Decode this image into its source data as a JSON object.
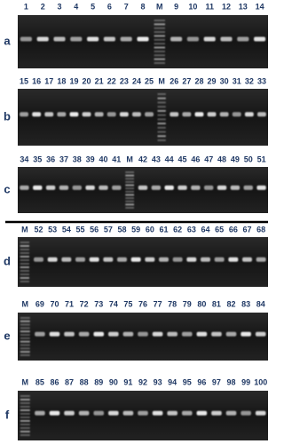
{
  "panels": [
    {
      "label": "a",
      "lanes": [
        "1",
        "2",
        "3",
        "4",
        "5",
        "6",
        "7",
        "8",
        "M",
        "9",
        "10",
        "11",
        "12",
        "13",
        "14"
      ]
    },
    {
      "label": "b",
      "lanes": [
        "15",
        "16",
        "17",
        "18",
        "19",
        "20",
        "21",
        "22",
        "23",
        "24",
        "25",
        "M",
        "26",
        "27",
        "28",
        "29",
        "30",
        "31",
        "32",
        "33"
      ]
    },
    {
      "label": "c",
      "lanes": [
        "34",
        "35",
        "36",
        "37",
        "38",
        "39",
        "40",
        "41",
        "M",
        "42",
        "43",
        "44",
        "45",
        "46",
        "47",
        "48",
        "49",
        "50",
        "51"
      ]
    },
    {
      "label": "d",
      "lanes": [
        "M",
        "52",
        "53",
        "54",
        "55",
        "56",
        "57",
        "58",
        "59",
        "60",
        "61",
        "62",
        "63",
        "64",
        "65",
        "66",
        "67",
        "68"
      ]
    },
    {
      "label": "e",
      "lanes": [
        "M",
        "69",
        "70",
        "71",
        "72",
        "73",
        "74",
        "75",
        "76",
        "77",
        "78",
        "79",
        "80",
        "81",
        "82",
        "83",
        "84"
      ]
    },
    {
      "label": "f",
      "lanes": [
        "M",
        "85",
        "86",
        "87",
        "88",
        "89",
        "90",
        "91",
        "92",
        "93",
        "94",
        "95",
        "96",
        "97",
        "98",
        "99",
        "100"
      ]
    }
  ]
}
